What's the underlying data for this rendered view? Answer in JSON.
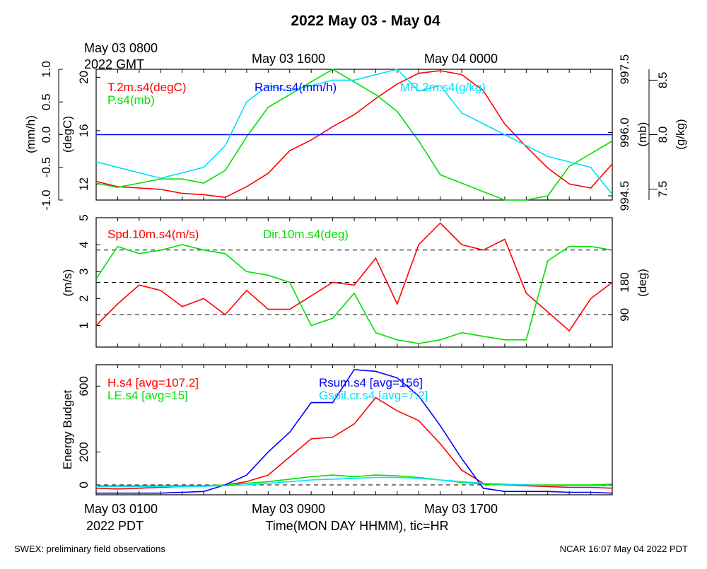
{
  "title": "2022 May 03 - May 04",
  "footer_left": "SWEX: preliminary field observations",
  "footer_right": "NCAR 16:07 May 04 2022 PDT",
  "top_time_labels": {
    "first": [
      "May 03 0800",
      "2022 GMT"
    ],
    "second": "May 03 1600",
    "third": "May 04 0000"
  },
  "bottom_time_labels": {
    "first": [
      "May 03 0100",
      "2022 PDT"
    ],
    "second": "May 03 0900",
    "third": "May 03 1700",
    "xlabel": "Time(MON DAY HHMM), tic=HR"
  },
  "colors": {
    "red": "#ff0000",
    "green": "#00e000",
    "blue": "#0000ff",
    "cyan": "#00e0ff"
  },
  "chart_data": [
    {
      "type": "line",
      "panel": "top",
      "legend": [
        "T.2m.s4(degC)",
        "P.s4(mb)",
        "Rainr.s4(mm/h)",
        "MR.2m.s4(g/kg)"
      ],
      "axes": {
        "degC": {
          "label": "(degC)",
          "ticks": [
            "12",
            "16",
            "20"
          ],
          "range": [
            10.8,
            20.6
          ]
        },
        "mm_h": {
          "label": "(mm/h)",
          "ticks": [
            "-1.0",
            "-0.5",
            "0.0",
            "0.5",
            "1.0"
          ],
          "range": [
            -1.0,
            1.0
          ]
        },
        "mb": {
          "label": "(mb)",
          "ticks": [
            "994.5",
            "996.0",
            "997.5"
          ],
          "range": [
            994.4,
            997.5
          ]
        },
        "g_kg": {
          "label": "(g/kg)",
          "ticks": [
            "7.5",
            "8.0",
            "8.5"
          ],
          "range": [
            7.4,
            8.6
          ]
        }
      },
      "hours_pdt": [
        0,
        1,
        2,
        3,
        4,
        5,
        6,
        7,
        8,
        9,
        10,
        11,
        12,
        13,
        14,
        15,
        16,
        17,
        18,
        19,
        20,
        21,
        22,
        23,
        24
      ],
      "series": [
        {
          "name": "T.2m.s4(degC)",
          "color": "#ff0000",
          "axis": "degC",
          "values": [
            12.2,
            11.8,
            11.7,
            11.6,
            11.3,
            11.2,
            11.0,
            11.8,
            12.8,
            14.5,
            15.3,
            16.3,
            17.2,
            18.4,
            19.5,
            20.3,
            20.5,
            20.2,
            19.0,
            16.5,
            14.8,
            13.2,
            12.0,
            11.7,
            13.5
          ]
        },
        {
          "name": "P.s4(mb)",
          "color": "#00e000",
          "axis": "mb",
          "values": [
            994.8,
            994.7,
            994.8,
            994.9,
            994.9,
            994.8,
            995.1,
            995.9,
            996.6,
            996.9,
            997.2,
            997.5,
            997.2,
            996.9,
            996.5,
            995.8,
            995.0,
            994.8,
            994.6,
            994.4,
            994.4,
            994.5,
            995.2,
            995.5,
            995.8
          ]
        },
        {
          "name": "Rainr.s4(mm/h)",
          "color": "#0000ff",
          "axis": "mm_h",
          "values": [
            0,
            0,
            0,
            0,
            0,
            0,
            0,
            0,
            0,
            0,
            0,
            0,
            0,
            0,
            0,
            0,
            0,
            0,
            0,
            0,
            0,
            0,
            0,
            0,
            0
          ]
        },
        {
          "name": "MR.2m.s4(g/kg)",
          "color": "#00e0ff",
          "axis": "g_kg",
          "values": [
            7.75,
            7.7,
            7.65,
            7.6,
            7.65,
            7.7,
            7.9,
            8.3,
            8.45,
            8.4,
            8.45,
            8.5,
            8.5,
            8.55,
            8.6,
            8.4,
            8.45,
            8.2,
            8.1,
            8.0,
            7.9,
            7.8,
            7.75,
            7.7,
            7.45
          ]
        }
      ]
    },
    {
      "type": "line",
      "panel": "middle",
      "legend": [
        "Spd.10m.s4(m/s)",
        "Dir.10m.s4(deg)"
      ],
      "axes": {
        "m_s": {
          "label": "(m/s)",
          "ticks": [
            "1",
            "2",
            "3",
            "4",
            "5"
          ],
          "range": [
            0.2,
            5.0
          ]
        },
        "deg": {
          "label": "(deg)",
          "ticks": [
            "90",
            "180"
          ],
          "range": [
            0,
            360
          ]
        }
      },
      "dashed_lines_deg": [
        90,
        180,
        270
      ],
      "hours_pdt": [
        0,
        1,
        2,
        3,
        4,
        5,
        6,
        7,
        8,
        9,
        10,
        11,
        12,
        13,
        14,
        15,
        16,
        17,
        18,
        19,
        20,
        21,
        22,
        23,
        24
      ],
      "series": [
        {
          "name": "Spd.10m.s4(m/s)",
          "color": "#ff0000",
          "axis": "m_s",
          "values": [
            1.0,
            1.8,
            2.5,
            2.3,
            1.7,
            2.0,
            1.4,
            2.3,
            1.6,
            1.6,
            2.1,
            2.6,
            2.5,
            3.5,
            1.8,
            4.0,
            4.8,
            4.0,
            3.8,
            4.2,
            2.2,
            1.5,
            0.8,
            2.0,
            2.6
          ]
        },
        {
          "name": "Dir.10m.s4(deg)",
          "color": "#00e000",
          "axis": "deg",
          "values": [
            190,
            280,
            260,
            270,
            285,
            270,
            260,
            210,
            200,
            180,
            60,
            80,
            150,
            40,
            20,
            10,
            20,
            40,
            30,
            20,
            20,
            240,
            280,
            280,
            270
          ]
        }
      ]
    },
    {
      "type": "line",
      "panel": "bottom",
      "ylabel": "Energy Budget",
      "legend": [
        "H.s4 [avg=107.2]",
        "LE.s4 [avg=15]",
        "Rsum.s4 [avg=156]",
        "Gsoil.cr.s4 [avg=7.2]"
      ],
      "yticks": [
        "0",
        "200",
        "600"
      ],
      "ylim": [
        -60,
        730
      ],
      "hours_pdt": [
        0,
        1,
        2,
        3,
        4,
        5,
        6,
        7,
        8,
        9,
        10,
        11,
        12,
        13,
        14,
        15,
        16,
        17,
        18,
        19,
        20,
        21,
        22,
        23,
        24
      ],
      "series": [
        {
          "name": "H.s4 [avg=107.2]",
          "color": "#ff0000",
          "values": [
            -20,
            -25,
            -20,
            -15,
            -10,
            -5,
            0,
            20,
            60,
            170,
            280,
            290,
            370,
            530,
            450,
            390,
            250,
            90,
            10,
            0,
            -5,
            -10,
            -15,
            -15,
            -20
          ]
        },
        {
          "name": "LE.s4 [avg=15]",
          "color": "#00e000",
          "values": [
            -5,
            -5,
            -5,
            -5,
            -5,
            -5,
            0,
            10,
            20,
            35,
            50,
            60,
            50,
            60,
            55,
            45,
            30,
            15,
            5,
            0,
            0,
            0,
            0,
            0,
            5
          ]
        },
        {
          "name": "Rsum.s4 [avg=156]",
          "color": "#0000ff",
          "values": [
            -50,
            -50,
            -50,
            -50,
            -45,
            -40,
            0,
            60,
            200,
            320,
            500,
            500,
            700,
            690,
            650,
            540,
            360,
            160,
            -20,
            -40,
            -40,
            -40,
            -45,
            -45,
            -50
          ]
        },
        {
          "name": "Gsoil.cr.s4 [avg=7.2]",
          "color": "#00e0ff",
          "values": [
            -10,
            -10,
            -10,
            -10,
            -10,
            -8,
            -5,
            0,
            10,
            20,
            30,
            35,
            40,
            45,
            45,
            40,
            30,
            20,
            10,
            5,
            0,
            -5,
            -5,
            -5,
            -5
          ]
        }
      ]
    }
  ]
}
